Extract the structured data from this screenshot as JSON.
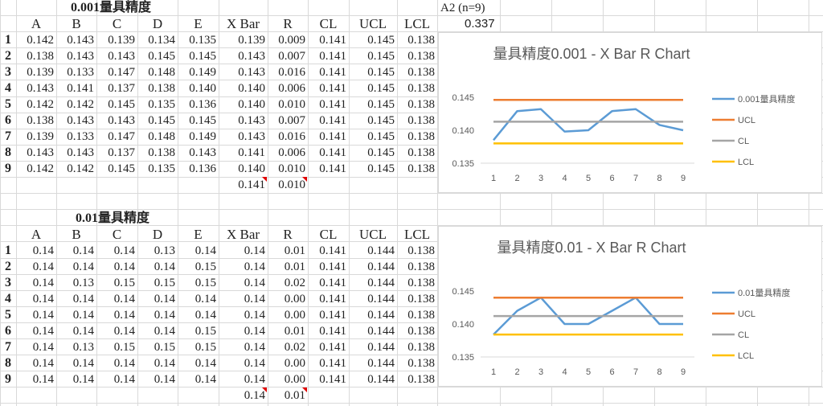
{
  "a2": {
    "label": "A2 (n=9)",
    "value": "0.337"
  },
  "table1": {
    "title": "0.001量具精度",
    "headers": [
      "A",
      "B",
      "C",
      "D",
      "E",
      "X Bar",
      "R",
      "CL",
      "UCL",
      "LCL"
    ],
    "rows": [
      [
        "1",
        "0.142",
        "0.143",
        "0.139",
        "0.134",
        "0.135",
        "0.139",
        "0.009",
        "0.141",
        "0.145",
        "0.138"
      ],
      [
        "2",
        "0.138",
        "0.143",
        "0.143",
        "0.145",
        "0.145",
        "0.143",
        "0.007",
        "0.141",
        "0.145",
        "0.138"
      ],
      [
        "3",
        "0.139",
        "0.133",
        "0.147",
        "0.148",
        "0.149",
        "0.143",
        "0.016",
        "0.141",
        "0.145",
        "0.138"
      ],
      [
        "4",
        "0.143",
        "0.141",
        "0.137",
        "0.138",
        "0.140",
        "0.140",
        "0.006",
        "0.141",
        "0.145",
        "0.138"
      ],
      [
        "5",
        "0.142",
        "0.142",
        "0.145",
        "0.135",
        "0.136",
        "0.140",
        "0.010",
        "0.141",
        "0.145",
        "0.138"
      ],
      [
        "6",
        "0.138",
        "0.143",
        "0.143",
        "0.145",
        "0.145",
        "0.143",
        "0.007",
        "0.141",
        "0.145",
        "0.138"
      ],
      [
        "7",
        "0.139",
        "0.133",
        "0.147",
        "0.148",
        "0.149",
        "0.143",
        "0.016",
        "0.141",
        "0.145",
        "0.138"
      ],
      [
        "8",
        "0.143",
        "0.143",
        "0.137",
        "0.138",
        "0.143",
        "0.141",
        "0.006",
        "0.141",
        "0.145",
        "0.138"
      ],
      [
        "9",
        "0.142",
        "0.142",
        "0.145",
        "0.135",
        "0.136",
        "0.140",
        "0.010",
        "0.141",
        "0.145",
        "0.138"
      ]
    ],
    "xbar_avg": "0.141",
    "r_avg": "0.010"
  },
  "table2": {
    "title": "0.01量具精度",
    "headers": [
      "A",
      "B",
      "C",
      "D",
      "E",
      "X Bar",
      "R",
      "CL",
      "UCL",
      "LCL"
    ],
    "rows": [
      [
        "1",
        "0.14",
        "0.14",
        "0.14",
        "0.13",
        "0.14",
        "0.14",
        "0.01",
        "0.141",
        "0.144",
        "0.138"
      ],
      [
        "2",
        "0.14",
        "0.14",
        "0.14",
        "0.14",
        "0.15",
        "0.14",
        "0.01",
        "0.141",
        "0.144",
        "0.138"
      ],
      [
        "3",
        "0.14",
        "0.13",
        "0.15",
        "0.15",
        "0.15",
        "0.14",
        "0.02",
        "0.141",
        "0.144",
        "0.138"
      ],
      [
        "4",
        "0.14",
        "0.14",
        "0.14",
        "0.14",
        "0.14",
        "0.14",
        "0.00",
        "0.141",
        "0.144",
        "0.138"
      ],
      [
        "5",
        "0.14",
        "0.14",
        "0.14",
        "0.14",
        "0.14",
        "0.14",
        "0.00",
        "0.141",
        "0.144",
        "0.138"
      ],
      [
        "6",
        "0.14",
        "0.14",
        "0.14",
        "0.14",
        "0.15",
        "0.14",
        "0.01",
        "0.141",
        "0.144",
        "0.138"
      ],
      [
        "7",
        "0.14",
        "0.13",
        "0.15",
        "0.15",
        "0.15",
        "0.14",
        "0.02",
        "0.141",
        "0.144",
        "0.138"
      ],
      [
        "8",
        "0.14",
        "0.14",
        "0.14",
        "0.14",
        "0.14",
        "0.14",
        "0.00",
        "0.141",
        "0.144",
        "0.138"
      ],
      [
        "9",
        "0.14",
        "0.14",
        "0.14",
        "0.14",
        "0.14",
        "0.14",
        "0.00",
        "0.141",
        "0.144",
        "0.138"
      ]
    ],
    "xbar_avg": "0.14",
    "r_avg": "0.01"
  },
  "chart_data": [
    {
      "type": "line",
      "title": "量具精度0.001 - X Bar R Chart",
      "x": [
        "1",
        "2",
        "3",
        "4",
        "5",
        "6",
        "7",
        "8",
        "9"
      ],
      "ylim": [
        0.135,
        0.145
      ],
      "yticks": [
        "0.135",
        "0.140",
        "0.145"
      ],
      "legend_position": "right",
      "series": [
        {
          "name": "0.001量具精度",
          "color": "#5b9bd5",
          "values": [
            0.1385,
            0.1429,
            0.1432,
            0.1398,
            0.14,
            0.1429,
            0.1432,
            0.1408,
            0.14
          ]
        },
        {
          "name": "UCL",
          "color": "#ed7d31",
          "values": [
            0.1446,
            0.1446,
            0.1446,
            0.1446,
            0.1446,
            0.1446,
            0.1446,
            0.1446,
            0.1446
          ]
        },
        {
          "name": "CL",
          "color": "#a5a5a5",
          "values": [
            0.1413,
            0.1413,
            0.1413,
            0.1413,
            0.1413,
            0.1413,
            0.1413,
            0.1413,
            0.1413
          ]
        },
        {
          "name": "LCL",
          "color": "#ffc000",
          "values": [
            0.138,
            0.138,
            0.138,
            0.138,
            0.138,
            0.138,
            0.138,
            0.138,
            0.138
          ]
        }
      ]
    },
    {
      "type": "line",
      "title": "量具精度0.01 - X Bar R Chart",
      "x": [
        "1",
        "2",
        "3",
        "4",
        "5",
        "6",
        "7",
        "8",
        "9"
      ],
      "ylim": [
        0.135,
        0.145
      ],
      "yticks": [
        "0.135",
        "0.140",
        "0.145"
      ],
      "legend_position": "right",
      "series": [
        {
          "name": "0.01量具精度",
          "color": "#5b9bd5",
          "values": [
            0.1384,
            0.142,
            0.144,
            0.14,
            0.14,
            0.142,
            0.144,
            0.14,
            0.14
          ]
        },
        {
          "name": "UCL",
          "color": "#ed7d31",
          "values": [
            0.144,
            0.144,
            0.144,
            0.144,
            0.144,
            0.144,
            0.144,
            0.144,
            0.144
          ]
        },
        {
          "name": "CL",
          "color": "#a5a5a5",
          "values": [
            0.1412,
            0.1412,
            0.1412,
            0.1412,
            0.1412,
            0.1412,
            0.1412,
            0.1412,
            0.1412
          ]
        },
        {
          "name": "LCL",
          "color": "#ffc000",
          "values": [
            0.1384,
            0.1384,
            0.1384,
            0.1384,
            0.1384,
            0.1384,
            0.1384,
            0.1384,
            0.1384
          ]
        }
      ]
    }
  ]
}
